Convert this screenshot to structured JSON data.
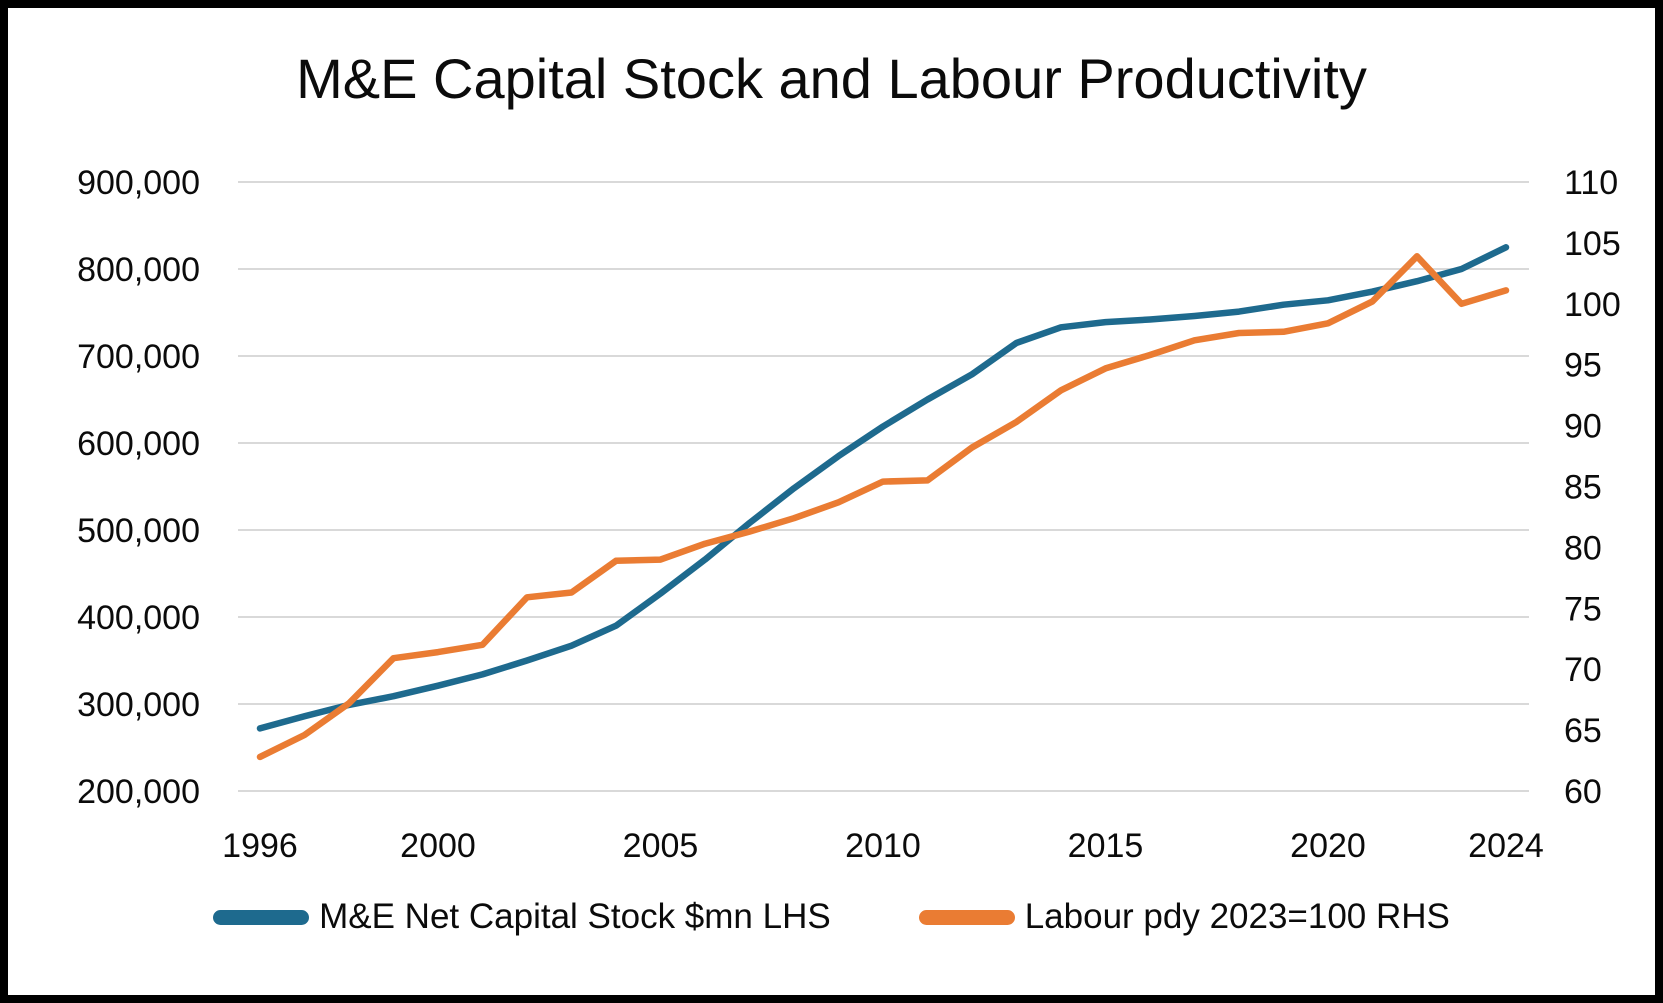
{
  "chart_data": {
    "type": "line",
    "title": "M&E Capital Stock and Labour Productivity",
    "x": [
      1996,
      1997,
      1998,
      1999,
      2000,
      2001,
      2002,
      2003,
      2004,
      2005,
      2006,
      2007,
      2008,
      2009,
      2010,
      2011,
      2012,
      2013,
      2014,
      2015,
      2016,
      2017,
      2018,
      2019,
      2020,
      2021,
      2022,
      2023,
      2024
    ],
    "series": [
      {
        "name": "M&E Net Capital Stock $mn LHS",
        "axis": "left",
        "color": "#1E6A8E",
        "values": [
          272000,
          286000,
          299000,
          309000,
          321000,
          334000,
          350000,
          367000,
          390000,
          427000,
          466000,
          508000,
          548000,
          585000,
          619000,
          650000,
          679000,
          715000,
          733000,
          739000,
          742000,
          746000,
          751000,
          759000,
          764000,
          774000,
          786000,
          800000,
          825000
        ]
      },
      {
        "name": "Labour pdy 2023=100 RHS",
        "axis": "right",
        "color": "#EA7C33",
        "values": [
          62.8,
          64.6,
          67.2,
          70.9,
          71.4,
          72.0,
          75.9,
          76.3,
          78.9,
          79.0,
          80.3,
          81.3,
          82.4,
          83.7,
          85.4,
          85.5,
          88.2,
          90.3,
          92.9,
          94.7,
          95.8,
          97.0,
          97.6,
          97.7,
          98.4,
          100.2,
          103.9,
          100.0,
          101.1
        ]
      }
    ],
    "axes": {
      "left": {
        "min": 200000,
        "max": 900000,
        "ticks": [
          {
            "label": "900,000",
            "value": 900000
          },
          {
            "label": "800,000",
            "value": 800000
          },
          {
            "label": "700,000",
            "value": 700000
          },
          {
            "label": "600,000",
            "value": 600000
          },
          {
            "label": "500,000",
            "value": 500000
          },
          {
            "label": "400,000",
            "value": 400000
          },
          {
            "label": "300,000",
            "value": 300000
          },
          {
            "label": "200,000",
            "value": 200000
          }
        ]
      },
      "right": {
        "min": 60,
        "max": 110,
        "ticks": [
          {
            "label": "110",
            "value": 110
          },
          {
            "label": "105",
            "value": 105
          },
          {
            "label": "100",
            "value": 100
          },
          {
            "label": "95",
            "value": 95
          },
          {
            "label": "90",
            "value": 90
          },
          {
            "label": "85",
            "value": 85
          },
          {
            "label": "80",
            "value": 80
          },
          {
            "label": "75",
            "value": 75
          },
          {
            "label": "70",
            "value": 70
          },
          {
            "label": "65",
            "value": 65
          },
          {
            "label": "60",
            "value": 60
          }
        ]
      },
      "x": {
        "ticks": [
          {
            "label": "1996",
            "value": 1996
          },
          {
            "label": "2000",
            "value": 2000
          },
          {
            "label": "2005",
            "value": 2005
          },
          {
            "label": "2010",
            "value": 2010
          },
          {
            "label": "2015",
            "value": 2015
          },
          {
            "label": "2020",
            "value": 2020
          },
          {
            "label": "2024",
            "value": 2024
          }
        ]
      }
    },
    "grid": "horizontal",
    "gridline_color": "#D9D9D9",
    "legend_position": "bottom"
  }
}
